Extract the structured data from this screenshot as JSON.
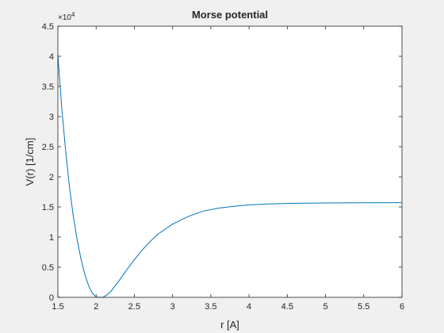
{
  "chart_data": {
    "type": "line",
    "title": "Morse potential",
    "xlabel": "r [A]",
    "ylabel": "V(r) [1/cm]",
    "xlim": [
      1.5,
      6
    ],
    "ylim": [
      0,
      45000
    ],
    "y_exponent_label": "×10",
    "y_exponent_power": "4",
    "xticks": [
      1.5,
      2,
      2.5,
      3,
      3.5,
      4,
      4.5,
      5,
      5.5,
      6
    ],
    "xtick_labels": [
      "1.5",
      "2",
      "2.5",
      "3",
      "3.5",
      "4",
      "4.5",
      "5",
      "5.5",
      "6"
    ],
    "yticks": [
      0,
      5000,
      10000,
      15000,
      20000,
      25000,
      30000,
      35000,
      40000,
      45000
    ],
    "ytick_labels": [
      "0",
      "0.5",
      "1",
      "1.5",
      "2",
      "2.5",
      "3",
      "3.5",
      "4",
      "4.5"
    ],
    "grid": false,
    "series": [
      {
        "color": "#0072bd",
        "x": [
          1.5,
          1.55,
          1.6,
          1.65,
          1.7,
          1.75,
          1.8,
          1.85,
          1.9,
          1.95,
          2.0,
          2.05,
          2.09,
          2.15,
          2.2,
          2.3,
          2.4,
          2.5,
          2.6,
          2.7,
          2.8,
          2.9,
          3.0,
          3.2,
          3.4,
          3.6,
          3.8,
          4.0,
          4.25,
          4.5,
          4.75,
          5.0,
          5.5,
          6.0
        ],
        "y": [
          40200,
          31500,
          24500,
          18500,
          13600,
          9700,
          6500,
          3900,
          2000,
          700,
          50,
          0,
          20,
          450,
          1100,
          2750,
          4550,
          6250,
          7800,
          9200,
          10400,
          11300,
          12150,
          13400,
          14300,
          14800,
          15100,
          15350,
          15500,
          15580,
          15630,
          15660,
          15690,
          15700
        ]
      }
    ]
  }
}
